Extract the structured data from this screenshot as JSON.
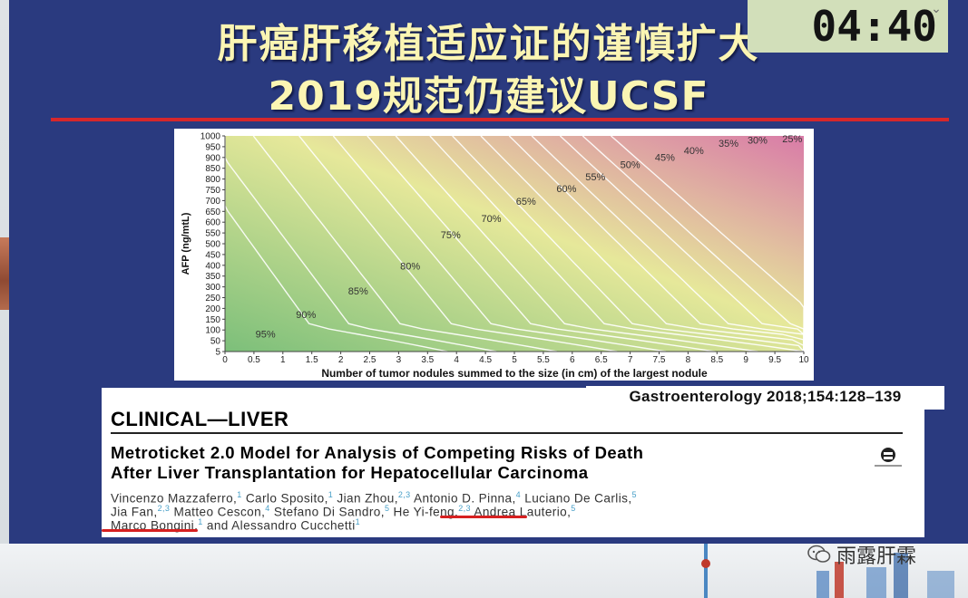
{
  "timer": {
    "value": "04:40",
    "toggle_icon": "chevron-down-icon"
  },
  "title": {
    "line1": "肝癌肝移植适应证的谨慎扩大",
    "line2": "2019规范仍建议UCSF"
  },
  "colors": {
    "slide_bg": "#2a3a7f",
    "title": "#fbf5b3",
    "rule": "#d6272b",
    "timer_bg": "#d2dfba",
    "heat_low": "#7cbf7a",
    "heat_mid": "#e6e89a",
    "heat_high": "#d97ba8"
  },
  "chart_data": {
    "type": "heatmap",
    "title": "",
    "xlabel": "Number of tumor nodules summed to the size (in cm) of the largest nodule",
    "ylabel": "AFP (ng/mtL)",
    "xlim": [
      0,
      10
    ],
    "ylim": [
      5,
      1000
    ],
    "x_ticks": [
      "0",
      "0.5",
      "1",
      "1.5",
      "2",
      "2.5",
      "3",
      "3.5",
      "4",
      "4.5",
      "5",
      "5.5",
      "6",
      "6.5",
      "7",
      "7.5",
      "8",
      "8.5",
      "9",
      "9.5",
      "10"
    ],
    "y_ticks": [
      "5",
      "50",
      "100",
      "150",
      "200",
      "250",
      "300",
      "350",
      "400",
      "450",
      "500",
      "550",
      "600",
      "650",
      "700",
      "750",
      "800",
      "850",
      "900",
      "950",
      "1000"
    ],
    "grid": false,
    "legend": "none",
    "contour_labels": [
      {
        "label": "95%",
        "x": 0.7,
        "y": 65
      },
      {
        "label": "90%",
        "x": 1.4,
        "y": 155
      },
      {
        "label": "85%",
        "x": 2.3,
        "y": 265
      },
      {
        "label": "80%",
        "x": 3.2,
        "y": 380
      },
      {
        "label": "75%",
        "x": 3.9,
        "y": 525
      },
      {
        "label": "70%",
        "x": 4.6,
        "y": 600
      },
      {
        "label": "65%",
        "x": 5.2,
        "y": 680
      },
      {
        "label": "60%",
        "x": 5.9,
        "y": 740
      },
      {
        "label": "55%",
        "x": 6.4,
        "y": 795
      },
      {
        "label": "50%",
        "x": 7.0,
        "y": 850
      },
      {
        "label": "45%",
        "x": 7.6,
        "y": 885
      },
      {
        "label": "40%",
        "x": 8.1,
        "y": 915
      },
      {
        "label": "35%",
        "x": 8.7,
        "y": 950
      },
      {
        "label": "30%",
        "x": 9.2,
        "y": 965
      },
      {
        "label": "25%",
        "x": 9.8,
        "y": 970
      }
    ]
  },
  "paper": {
    "citation": "Gastroenterology 2018;154:128–139",
    "section": "CLINICAL—LIVER",
    "title_line1": "Metroticket 2.0 Model for Analysis of Competing Risks of Death",
    "title_line2": "After Liver Transplantation for Hepatocellular Carcinoma",
    "authors": [
      {
        "name": "Vincenzo Mazzaferro,",
        "aff": "1"
      },
      {
        "name": "Carlo Sposito,",
        "aff": "1"
      },
      {
        "name": "Jian Zhou,",
        "aff": "2,3"
      },
      {
        "name": "Antonio D. Pinna,",
        "aff": "4"
      },
      {
        "name": "Luciano De Carlis,",
        "aff": "5"
      },
      {
        "name": "Jia Fan,",
        "aff": "2,3"
      },
      {
        "name": "Matteo Cescon,",
        "aff": "4"
      },
      {
        "name": "Stefano Di Sandro,",
        "aff": "5"
      },
      {
        "name": "He Yi-feng,",
        "aff": "2,3"
      },
      {
        "name": "Andrea Lauterio,",
        "aff": "5"
      },
      {
        "name": "Marco Bongini,",
        "aff": "1"
      },
      {
        "name": "and Alessandro Cucchetti",
        "aff": "1"
      }
    ]
  },
  "watermark": {
    "text": "雨露肝霖",
    "icon": "wechat-icon"
  }
}
